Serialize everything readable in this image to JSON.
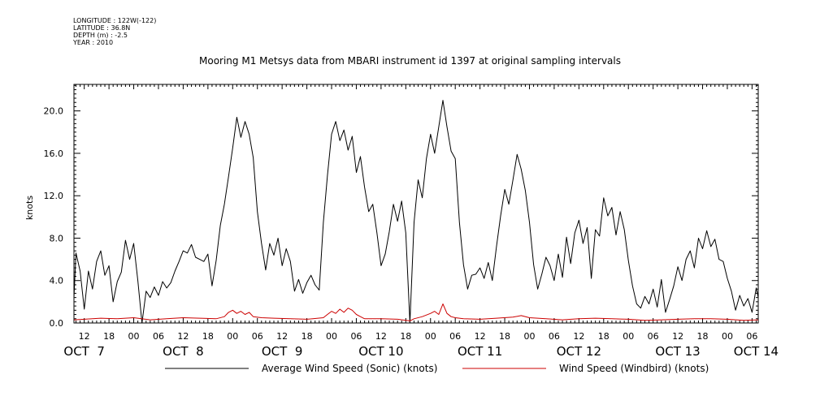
{
  "meta": {
    "longitude": "LONGITUDE : 122W(-122)",
    "latitude": "LATITUDE : 36.8N",
    "depth": "DEPTH (m) : -2.5",
    "year": "YEAR : 2010"
  },
  "chart_data": {
    "type": "line",
    "title": "Mooring M1 Metsys data from MBARI instrument id 1397 at original sampling intervals",
    "ylabel": "knots",
    "xlabel": "",
    "ylim": [
      0,
      22.5
    ],
    "xlim": [
      9.5,
      175.5
    ],
    "x_units": "hours after 2010-10-07 00:00",
    "y_ticks": [
      "0.0",
      "4.0",
      "8.0",
      "12.0",
      "16.0",
      "20.0"
    ],
    "y_tick_values": [
      0,
      4,
      8,
      12,
      16,
      20
    ],
    "hour_ticks": [
      {
        "x": 12,
        "label": "12"
      },
      {
        "x": 18,
        "label": "18"
      },
      {
        "x": 24,
        "label": "00"
      },
      {
        "x": 30,
        "label": "06"
      },
      {
        "x": 36,
        "label": "12"
      },
      {
        "x": 42,
        "label": "18"
      },
      {
        "x": 48,
        "label": "00"
      },
      {
        "x": 54,
        "label": "06"
      },
      {
        "x": 60,
        "label": "12"
      },
      {
        "x": 66,
        "label": "18"
      },
      {
        "x": 72,
        "label": "00"
      },
      {
        "x": 78,
        "label": "06"
      },
      {
        "x": 84,
        "label": "12"
      },
      {
        "x": 90,
        "label": "18"
      },
      {
        "x": 96,
        "label": "00"
      },
      {
        "x": 102,
        "label": "06"
      },
      {
        "x": 108,
        "label": "12"
      },
      {
        "x": 114,
        "label": "18"
      },
      {
        "x": 120,
        "label": "00"
      },
      {
        "x": 126,
        "label": "06"
      },
      {
        "x": 132,
        "label": "12"
      },
      {
        "x": 138,
        "label": "18"
      },
      {
        "x": 144,
        "label": "00"
      },
      {
        "x": 150,
        "label": "06"
      },
      {
        "x": 156,
        "label": "12"
      },
      {
        "x": 162,
        "label": "18"
      },
      {
        "x": 168,
        "label": "00"
      },
      {
        "x": 174,
        "label": "06"
      }
    ],
    "day_labels": [
      {
        "x": 12,
        "label": "OCT  7"
      },
      {
        "x": 36,
        "label": "OCT  8"
      },
      {
        "x": 60,
        "label": "OCT  9"
      },
      {
        "x": 84,
        "label": "OCT 10"
      },
      {
        "x": 108,
        "label": "OCT 11"
      },
      {
        "x": 132,
        "label": "OCT 12"
      },
      {
        "x": 156,
        "label": "OCT 13"
      },
      {
        "x": 175,
        "label": "OCT 14"
      }
    ],
    "series": [
      {
        "name": "Average Wind Speed (Sonic) (knots)",
        "color": "#000000",
        "points": [
          [
            9.5,
            2.4
          ],
          [
            10,
            6.6
          ],
          [
            11,
            4.9
          ],
          [
            12,
            1.3
          ],
          [
            13,
            4.9
          ],
          [
            14,
            3.2
          ],
          [
            15,
            5.8
          ],
          [
            16,
            6.8
          ],
          [
            17,
            4.5
          ],
          [
            18,
            5.4
          ],
          [
            19,
            2.0
          ],
          [
            20,
            3.9
          ],
          [
            21,
            4.8
          ],
          [
            22,
            7.8
          ],
          [
            23,
            6.0
          ],
          [
            24,
            7.5
          ],
          [
            25,
            4.0
          ],
          [
            26,
            0.0
          ],
          [
            27,
            3.0
          ],
          [
            28,
            2.4
          ],
          [
            29,
            3.4
          ],
          [
            30,
            2.6
          ],
          [
            31,
            3.9
          ],
          [
            32,
            3.3
          ],
          [
            33,
            3.8
          ],
          [
            34,
            4.9
          ],
          [
            35,
            5.8
          ],
          [
            36,
            6.8
          ],
          [
            37,
            6.6
          ],
          [
            38,
            7.4
          ],
          [
            39,
            6.2
          ],
          [
            40,
            6.0
          ],
          [
            41,
            5.8
          ],
          [
            42,
            6.5
          ],
          [
            43,
            3.5
          ],
          [
            44,
            5.9
          ],
          [
            45,
            9.2
          ],
          [
            46,
            11.2
          ],
          [
            47,
            13.8
          ],
          [
            48,
            16.5
          ],
          [
            49,
            19.4
          ],
          [
            50,
            17.5
          ],
          [
            51,
            19.0
          ],
          [
            52,
            17.8
          ],
          [
            53,
            15.6
          ],
          [
            54,
            10.5
          ],
          [
            55,
            7.5
          ],
          [
            56,
            5.0
          ],
          [
            57,
            7.5
          ],
          [
            58,
            6.4
          ],
          [
            59,
            8.0
          ],
          [
            60,
            5.4
          ],
          [
            61,
            7.0
          ],
          [
            62,
            5.8
          ],
          [
            63,
            3.0
          ],
          [
            64,
            4.1
          ],
          [
            65,
            2.8
          ],
          [
            66,
            3.8
          ],
          [
            67,
            4.5
          ],
          [
            68,
            3.6
          ],
          [
            69,
            3.1
          ],
          [
            70,
            9.5
          ],
          [
            71,
            13.9
          ],
          [
            72,
            17.8
          ],
          [
            73,
            19.0
          ],
          [
            74,
            17.2
          ],
          [
            75,
            18.2
          ],
          [
            76,
            16.3
          ],
          [
            77,
            17.6
          ],
          [
            78,
            14.2
          ],
          [
            79,
            15.7
          ],
          [
            80,
            12.8
          ],
          [
            81,
            10.5
          ],
          [
            82,
            11.2
          ],
          [
            83,
            8.5
          ],
          [
            84,
            5.4
          ],
          [
            85,
            6.5
          ],
          [
            86,
            8.6
          ],
          [
            87,
            11.2
          ],
          [
            88,
            9.6
          ],
          [
            89,
            11.5
          ],
          [
            90,
            8.5
          ],
          [
            91,
            0.0
          ],
          [
            92,
            9.5
          ],
          [
            93,
            13.5
          ],
          [
            94,
            11.8
          ],
          [
            95,
            15.5
          ],
          [
            96,
            17.8
          ],
          [
            97,
            16.0
          ],
          [
            98,
            18.5
          ],
          [
            99,
            21.0
          ],
          [
            100,
            18.5
          ],
          [
            101,
            16.2
          ],
          [
            102,
            15.5
          ],
          [
            103,
            9.5
          ],
          [
            104,
            5.5
          ],
          [
            105,
            3.2
          ],
          [
            106,
            4.5
          ],
          [
            107,
            4.6
          ],
          [
            108,
            5.2
          ],
          [
            109,
            4.2
          ],
          [
            110,
            5.7
          ],
          [
            111,
            4.0
          ],
          [
            112,
            7.2
          ],
          [
            113,
            10.1
          ],
          [
            114,
            12.6
          ],
          [
            115,
            11.2
          ],
          [
            116,
            13.5
          ],
          [
            117,
            15.9
          ],
          [
            118,
            14.5
          ],
          [
            119,
            12.5
          ],
          [
            120,
            9.5
          ],
          [
            121,
            5.5
          ],
          [
            122,
            3.2
          ],
          [
            123,
            4.6
          ],
          [
            124,
            6.2
          ],
          [
            125,
            5.4
          ],
          [
            126,
            4.0
          ],
          [
            127,
            6.5
          ],
          [
            128,
            4.3
          ],
          [
            129,
            8.1
          ],
          [
            130,
            5.6
          ],
          [
            131,
            8.5
          ],
          [
            132,
            9.7
          ],
          [
            133,
            7.5
          ],
          [
            134,
            9.0
          ],
          [
            135,
            4.2
          ],
          [
            136,
            8.8
          ],
          [
            137,
            8.2
          ],
          [
            138,
            11.8
          ],
          [
            139,
            10.1
          ],
          [
            140,
            10.9
          ],
          [
            141,
            8.3
          ],
          [
            142,
            10.5
          ],
          [
            143,
            8.8
          ],
          [
            144,
            5.9
          ],
          [
            145,
            3.5
          ],
          [
            146,
            1.8
          ],
          [
            147,
            1.4
          ],
          [
            148,
            2.5
          ],
          [
            149,
            1.8
          ],
          [
            150,
            3.2
          ],
          [
            151,
            1.5
          ],
          [
            152,
            4.1
          ],
          [
            153,
            1.0
          ],
          [
            154,
            2.2
          ],
          [
            155,
            3.5
          ],
          [
            156,
            5.3
          ],
          [
            157,
            4.0
          ],
          [
            158,
            6.0
          ],
          [
            159,
            6.8
          ],
          [
            160,
            5.2
          ],
          [
            161,
            8.0
          ],
          [
            162,
            7.0
          ],
          [
            163,
            8.7
          ],
          [
            164,
            7.2
          ],
          [
            165,
            7.9
          ],
          [
            166,
            6.0
          ],
          [
            167,
            5.8
          ],
          [
            168,
            4.2
          ],
          [
            169,
            3.0
          ],
          [
            170,
            1.2
          ],
          [
            171,
            2.6
          ],
          [
            172,
            1.6
          ],
          [
            173,
            2.3
          ],
          [
            174,
            1.0
          ],
          [
            175,
            3.3
          ],
          [
            175.5,
            2.4
          ]
        ]
      },
      {
        "name": "Wind Speed (Windbird) (knots)",
        "color": "#cc0000",
        "points": [
          [
            9.5,
            0.3
          ],
          [
            12,
            0.35
          ],
          [
            16,
            0.45
          ],
          [
            20,
            0.4
          ],
          [
            24,
            0.5
          ],
          [
            28,
            0.3
          ],
          [
            32,
            0.4
          ],
          [
            36,
            0.5
          ],
          [
            40,
            0.45
          ],
          [
            44,
            0.4
          ],
          [
            46,
            0.6
          ],
          [
            47,
            1.0
          ],
          [
            48,
            1.2
          ],
          [
            49,
            0.9
          ],
          [
            50,
            1.1
          ],
          [
            51,
            0.8
          ],
          [
            52,
            1.0
          ],
          [
            53,
            0.6
          ],
          [
            55,
            0.5
          ],
          [
            58,
            0.45
          ],
          [
            62,
            0.4
          ],
          [
            66,
            0.35
          ],
          [
            70,
            0.5
          ],
          [
            71,
            0.8
          ],
          [
            72,
            1.1
          ],
          [
            73,
            0.9
          ],
          [
            74,
            1.3
          ],
          [
            75,
            1.0
          ],
          [
            76,
            1.4
          ],
          [
            77,
            1.2
          ],
          [
            78,
            0.8
          ],
          [
            79,
            0.6
          ],
          [
            80,
            0.4
          ],
          [
            84,
            0.4
          ],
          [
            88,
            0.35
          ],
          [
            91,
            0.2
          ],
          [
            92,
            0.4
          ],
          [
            94,
            0.6
          ],
          [
            96,
            0.9
          ],
          [
            97,
            1.1
          ],
          [
            98,
            0.8
          ],
          [
            99,
            1.8
          ],
          [
            100,
            0.9
          ],
          [
            101,
            0.6
          ],
          [
            102,
            0.5
          ],
          [
            104,
            0.4
          ],
          [
            108,
            0.35
          ],
          [
            112,
            0.45
          ],
          [
            116,
            0.55
          ],
          [
            118,
            0.7
          ],
          [
            120,
            0.5
          ],
          [
            124,
            0.4
          ],
          [
            128,
            0.3
          ],
          [
            132,
            0.4
          ],
          [
            136,
            0.45
          ],
          [
            140,
            0.4
          ],
          [
            144,
            0.35
          ],
          [
            148,
            0.25
          ],
          [
            152,
            0.3
          ],
          [
            156,
            0.35
          ],
          [
            160,
            0.4
          ],
          [
            164,
            0.4
          ],
          [
            168,
            0.35
          ],
          [
            172,
            0.25
          ],
          [
            175.5,
            0.3
          ]
        ]
      }
    ]
  }
}
